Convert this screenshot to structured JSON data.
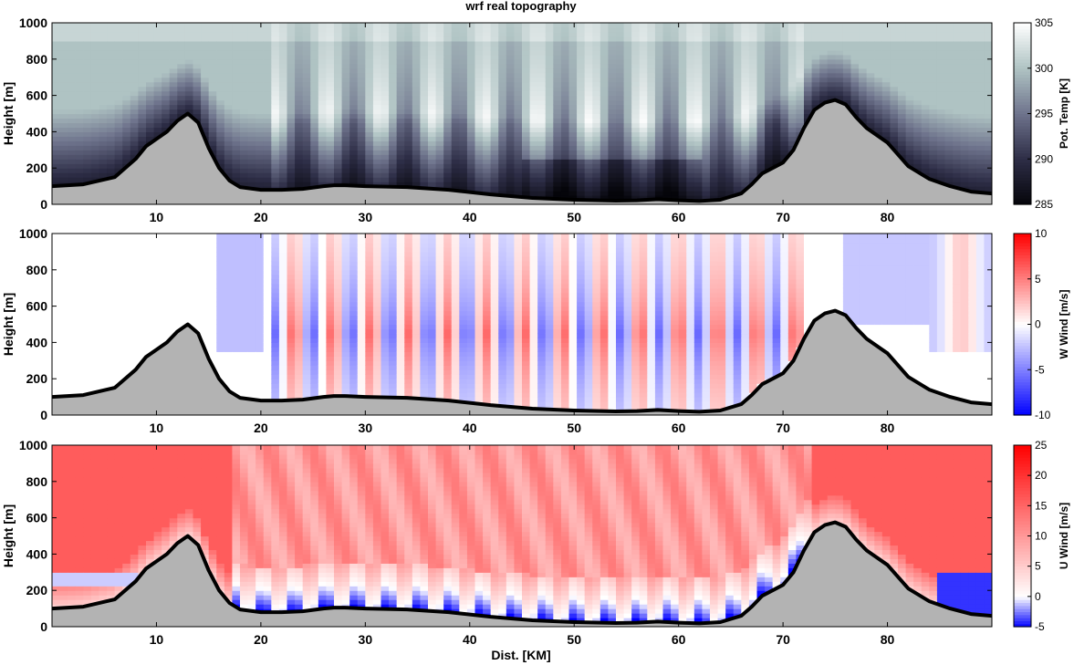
{
  "title": "wrf real topography",
  "xlabel": "Dist. [KM]",
  "chart_data": [
    {
      "type": "heatmap",
      "title": "wrf real topography",
      "xlabel": "",
      "ylabel": "Height [m]",
      "xlim": [
        0,
        90
      ],
      "ylim": [
        0,
        1000
      ],
      "xticks": [
        10,
        20,
        30,
        40,
        50,
        60,
        70,
        80
      ],
      "yticks": [
        0,
        200,
        400,
        600,
        800,
        1000
      ],
      "colorbar": {
        "label": "Pot. Temp [K]",
        "ticks": [
          285,
          290,
          295,
          300,
          305
        ],
        "range": [
          285,
          305
        ],
        "colormap": "bone"
      },
      "field_description": "potential temperature"
    },
    {
      "type": "heatmap",
      "title": "",
      "xlabel": "",
      "ylabel": "Height [m]",
      "xlim": [
        0,
        90
      ],
      "ylim": [
        0,
        1000
      ],
      "xticks": [
        10,
        20,
        30,
        40,
        50,
        60,
        70,
        80
      ],
      "yticks": [
        0,
        200,
        400,
        600,
        800,
        1000
      ],
      "colorbar": {
        "label": "W Wind [m/s]",
        "ticks": [
          -10,
          -5,
          0,
          5,
          10
        ],
        "range": [
          -10,
          10
        ],
        "colormap": "blue-white-red"
      },
      "field_description": "vertical wind"
    },
    {
      "type": "heatmap",
      "title": "",
      "xlabel": "Dist. [KM]",
      "ylabel": "Height [m]",
      "xlim": [
        0,
        90
      ],
      "ylim": [
        0,
        1000
      ],
      "xticks": [
        10,
        20,
        30,
        40,
        50,
        60,
        70,
        80
      ],
      "yticks": [
        0,
        200,
        400,
        600,
        800,
        1000
      ],
      "colorbar": {
        "label": "U Wind [m/s]",
        "ticks": [
          -5,
          0,
          5,
          10,
          15,
          20,
          25
        ],
        "range": [
          -5,
          25
        ],
        "colormap": "blue-white-red"
      },
      "field_description": "horizontal wind"
    }
  ],
  "terrain": {
    "x": [
      0,
      3,
      6,
      8,
      9,
      10,
      11,
      12,
      13,
      14,
      15,
      16,
      17,
      18,
      20,
      22,
      24,
      26,
      27,
      28,
      30,
      34,
      38,
      42,
      46,
      50,
      54,
      56,
      58,
      60,
      62,
      64,
      66,
      67,
      68,
      69,
      70,
      71,
      72,
      73,
      74,
      75,
      76,
      77,
      78,
      80,
      82,
      84,
      86,
      88,
      90
    ],
    "y": [
      100,
      110,
      150,
      250,
      320,
      360,
      400,
      460,
      500,
      450,
      310,
      200,
      130,
      95,
      80,
      80,
      85,
      100,
      105,
      105,
      100,
      95,
      80,
      55,
      35,
      25,
      20,
      22,
      28,
      22,
      18,
      25,
      60,
      110,
      170,
      200,
      230,
      300,
      420,
      520,
      560,
      575,
      550,
      480,
      420,
      340,
      210,
      140,
      100,
      70,
      60
    ]
  },
  "colors": {
    "terrain": "#b3b3b3",
    "warm": "#ff0000",
    "cool": "#0000ff"
  }
}
